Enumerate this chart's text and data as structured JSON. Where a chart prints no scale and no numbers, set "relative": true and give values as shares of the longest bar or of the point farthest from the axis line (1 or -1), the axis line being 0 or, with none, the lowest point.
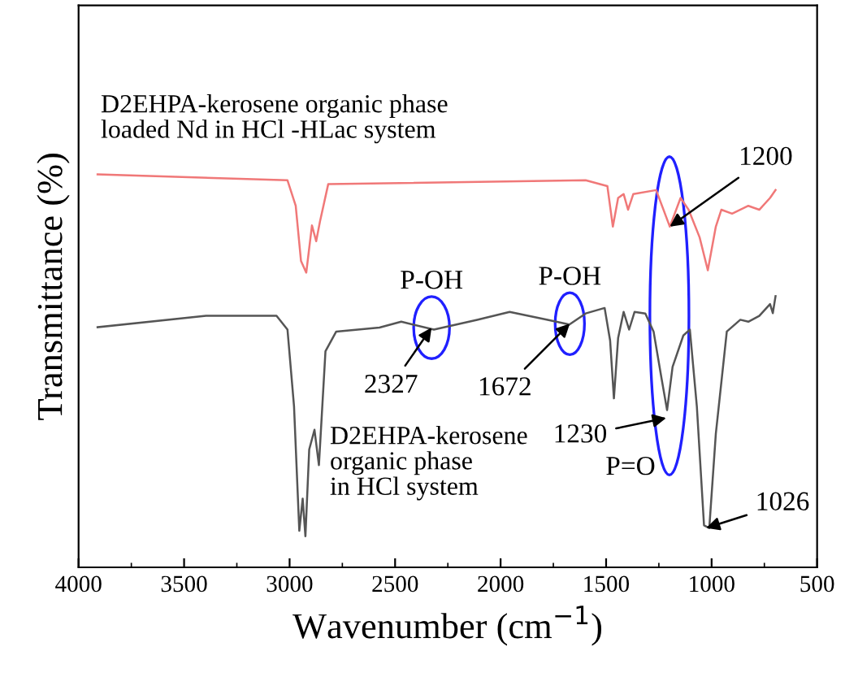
{
  "chart_data": {
    "type": "line",
    "relative": true,
    "xlabel": "Wavenumber (cm$^{−1}$)",
    "ylabel": "Transmittance (%)",
    "xlim": [
      4000,
      500
    ],
    "xticks": [
      4000,
      3500,
      3000,
      2500,
      2000,
      1500,
      1000,
      500
    ],
    "grid": false,
    "legend": false,
    "series": [
      {
        "name": "D2EHPA-kerosene organic phase\nloaded Nd in HCl -HLac system",
        "color": "#f07878",
        "x": [
          3910,
          3010,
          2971,
          2946,
          2921,
          2894,
          2874,
          2856,
          2817,
          1597,
          1494,
          1468,
          1443,
          1417,
          1396,
          1371,
          1263,
          1198,
          1147,
          1109,
          1057,
          1018,
          980,
          954,
          903,
          826,
          774,
          723,
          697
        ],
        "values": [
          1.0,
          0.985,
          0.92,
          0.78,
          0.75,
          0.87,
          0.83,
          0.88,
          0.975,
          0.985,
          0.97,
          0.867,
          0.94,
          0.95,
          0.91,
          0.95,
          0.96,
          0.867,
          0.94,
          0.91,
          0.84,
          0.756,
          0.867,
          0.91,
          0.9,
          0.92,
          0.91,
          0.94,
          0.96
        ]
      },
      {
        "name": "D2EHPA-kerosene\norganic phase\nin HCl system",
        "color": "#555555",
        "x": [
          3910,
          3396,
          3062,
          3010,
          2979,
          2954,
          2938,
          2925,
          2907,
          2882,
          2861,
          2830,
          2779,
          2574,
          2471,
          2316,
          2111,
          1957,
          1777,
          1674,
          1597,
          1507,
          1481,
          1463,
          1443,
          1417,
          1391,
          1365,
          1314,
          1275,
          1237,
          1211,
          1185,
          1134,
          1103,
          1070,
          1036,
          1011,
          980,
          928,
          864,
          826,
          774,
          723,
          710,
          697
        ],
        "values": [
          0.611,
          0.64,
          0.64,
          0.605,
          0.41,
          0.093,
          0.175,
          0.079,
          0.3,
          0.35,
          0.26,
          0.55,
          0.6,
          0.61,
          0.625,
          0.605,
          0.63,
          0.65,
          0.63,
          0.618,
          0.646,
          0.66,
          0.577,
          0.43,
          0.584,
          0.65,
          0.605,
          0.65,
          0.646,
          0.6,
          0.48,
          0.4,
          0.51,
          0.59,
          0.605,
          0.41,
          0.107,
          0.1,
          0.34,
          0.6,
          0.63,
          0.625,
          0.64,
          0.67,
          0.647,
          0.69
        ]
      }
    ],
    "annotations": [
      {
        "text": "P-OH",
        "x": 2327,
        "y": 0.61
      },
      {
        "text": "2327",
        "x": 2327,
        "y": 0.61
      },
      {
        "text": "P-OH",
        "x": 1672,
        "y": 0.62
      },
      {
        "text": "1672",
        "x": 1672,
        "y": 0.62
      },
      "P=O",
      {
        "text": "1230",
        "x": 1215,
        "y": 0.38
      },
      {
        "text": "1200",
        "x": 1198,
        "y": 0.867
      },
      {
        "text": "1026",
        "x": 1026,
        "y": 0.1
      }
    ]
  }
}
